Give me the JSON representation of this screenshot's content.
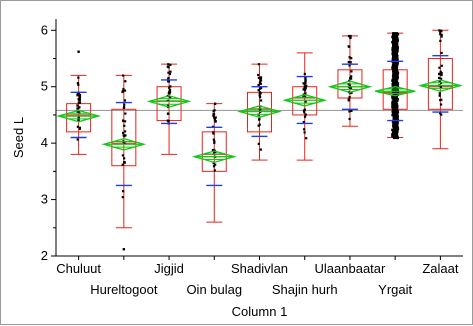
{
  "chart_data": {
    "type": "box",
    "title": "",
    "xlabel": "Column 1",
    "ylabel": "Seed L",
    "ylim": [
      2,
      6.2
    ],
    "yticks": [
      2,
      3,
      4,
      5,
      6
    ],
    "grand_mean": 4.58,
    "grid": false,
    "categories": [
      "Chuluut",
      "Hureltogoot",
      "Jigjid",
      "Oin bulag",
      "Shadivlan",
      "Shajin hurh",
      "Ulaanbaatar",
      "Yrgait",
      "Zalaat"
    ],
    "boxes": [
      {
        "name": "Chuluut",
        "min": 3.8,
        "q1": 4.2,
        "median": 4.5,
        "q3": 4.7,
        "max": 5.2,
        "mean": 4.48,
        "sd_low": 4.1,
        "sd_high": 4.9,
        "ci_low": 4.38,
        "ci_high": 4.58,
        "outliers": [
          5.62
        ]
      },
      {
        "name": "Hureltogoot",
        "min": 2.5,
        "q1": 3.6,
        "median": 4.0,
        "q3": 4.6,
        "max": 5.2,
        "mean": 3.98,
        "sd_low": 3.25,
        "sd_high": 4.72,
        "ci_low": 3.88,
        "ci_high": 4.08,
        "outliers": [
          2.12
        ]
      },
      {
        "name": "Jigjid",
        "min": 3.8,
        "q1": 4.4,
        "median": 4.75,
        "q3": 5.0,
        "max": 5.4,
        "mean": 4.74,
        "sd_low": 4.35,
        "sd_high": 5.12,
        "ci_low": 4.64,
        "ci_high": 4.84,
        "outliers": []
      },
      {
        "name": "Oin bulag",
        "min": 2.6,
        "q1": 3.5,
        "median": 3.8,
        "q3": 4.2,
        "max": 4.7,
        "mean": 3.76,
        "sd_low": 3.25,
        "sd_high": 4.28,
        "ci_low": 3.66,
        "ci_high": 3.86,
        "outliers": []
      },
      {
        "name": "Shadivlan",
        "min": 3.7,
        "q1": 4.2,
        "median": 4.6,
        "q3": 4.9,
        "max": 5.4,
        "mean": 4.56,
        "sd_low": 4.12,
        "sd_high": 5.0,
        "ci_low": 4.46,
        "ci_high": 4.66,
        "outliers": []
      },
      {
        "name": "Shajin hurh",
        "min": 3.7,
        "q1": 4.5,
        "median": 4.8,
        "q3": 5.0,
        "max": 5.6,
        "mean": 4.76,
        "sd_low": 4.35,
        "sd_high": 5.18,
        "ci_low": 4.66,
        "ci_high": 4.86,
        "outliers": []
      },
      {
        "name": "Ulaanbaatar",
        "min": 4.3,
        "q1": 4.8,
        "median": 5.0,
        "q3": 5.3,
        "max": 5.9,
        "mean": 5.0,
        "sd_low": 4.6,
        "sd_high": 5.4,
        "ci_low": 4.9,
        "ci_high": 5.1,
        "outliers": []
      },
      {
        "name": "Yrgait",
        "min": 4.1,
        "q1": 4.6,
        "median": 4.9,
        "q3": 5.3,
        "max": 5.95,
        "mean": 4.92,
        "sd_low": 4.4,
        "sd_high": 5.45,
        "ci_low": 4.84,
        "ci_high": 5.0,
        "outliers": []
      },
      {
        "name": "Zalaat",
        "min": 3.9,
        "q1": 4.6,
        "median": 5.0,
        "q3": 5.5,
        "max": 6.0,
        "mean": 5.02,
        "sd_low": 4.55,
        "sd_high": 5.55,
        "ci_low": 4.92,
        "ci_high": 5.12,
        "outliers": []
      }
    ],
    "colors": {
      "box": "#e8251b",
      "mean_diamond": "#19c419",
      "sd_whisker": "#1e3cf0",
      "points": "#000000",
      "grand_mean_line": "#a0a0a0",
      "axis": "#000000"
    }
  }
}
